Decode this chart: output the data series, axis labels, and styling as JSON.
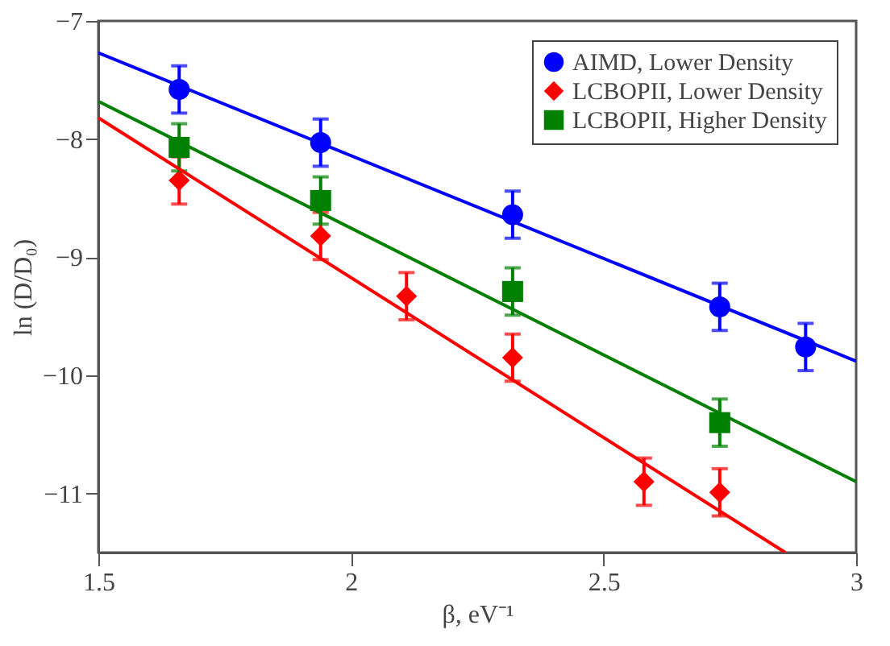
{
  "chart_data": {
    "type": "scatter",
    "xlabel": "β, eV⁻¹",
    "ylabel": "ln (D/D₀)",
    "xlim": [
      1.5,
      3
    ],
    "xticks": [
      1.5,
      2,
      2.5,
      3
    ],
    "ylim": [
      -11.5,
      -7
    ],
    "yticks": [
      -7,
      -8,
      -9,
      -10,
      -11
    ],
    "grid": false,
    "legend": "top right",
    "series": [
      {
        "name": "AIMD, Lower Density",
        "color": "#0000ff",
        "marker": "circle",
        "x": [
          1.66,
          1.94,
          2.32,
          2.73,
          2.9
        ],
        "values": [
          -7.58,
          -8.03,
          -8.64,
          -9.42,
          -9.76
        ],
        "errors": [
          0.2,
          0.2,
          0.2,
          0.2,
          0.2
        ]
      },
      {
        "name": "LCBOPII, Lower Density",
        "color": "#ff0000",
        "marker": "diamond",
        "x": [
          1.66,
          1.94,
          2.11,
          2.32,
          2.58,
          2.73
        ],
        "values": [
          -8.35,
          -8.82,
          -9.33,
          -9.85,
          -10.9,
          -10.99
        ],
        "errors": [
          0.2,
          0.2,
          0.2,
          0.2,
          0.2,
          0.2
        ]
      },
      {
        "name": "LCBOPII, Higher Density",
        "color": "#008000",
        "marker": "square",
        "x": [
          1.66,
          1.94,
          2.32,
          2.73
        ],
        "values": [
          -8.07,
          -8.52,
          -9.29,
          -10.4
        ],
        "errors": [
          0.2,
          0.2,
          0.2,
          0.2
        ]
      },
      {
        "type": "line",
        "color": "#0000ff",
        "marker": "none",
        "line_style": "solid",
        "x": [
          1.5,
          3
        ],
        "values": [
          -7.27,
          -9.88
        ]
      },
      {
        "type": "line",
        "color": "#ff0000",
        "marker": "none",
        "line_style": "solid",
        "x": [
          1.5,
          2.86
        ],
        "values": [
          -7.82,
          -11.5
        ]
      },
      {
        "type": "line",
        "color": "#008000",
        "marker": "none",
        "line_style": "solid",
        "x": [
          1.5,
          3
        ],
        "values": [
          -7.68,
          -10.9
        ]
      }
    ]
  }
}
